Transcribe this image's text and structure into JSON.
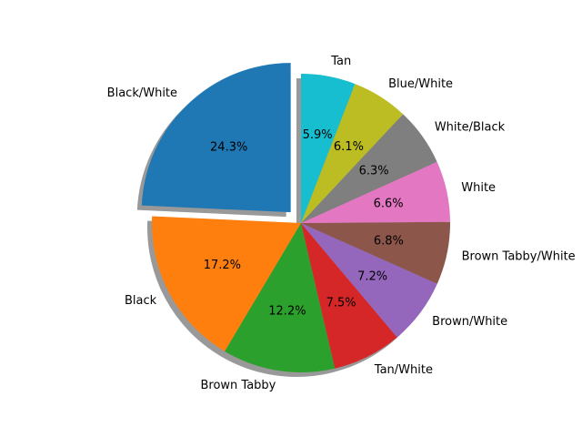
{
  "chart_data": {
    "type": "pie",
    "title": "",
    "categories": [
      "Black/White",
      "Black",
      "Brown Tabby",
      "Tan/White",
      "Brown/White",
      "Brown Tabby/White",
      "White",
      "White/Black",
      "Blue/White",
      "Tan"
    ],
    "values": [
      24.3,
      17.2,
      12.2,
      7.5,
      7.2,
      6.8,
      6.6,
      6.3,
      6.1,
      5.9
    ],
    "percent_labels": [
      "24.3%",
      "17.2%",
      "12.2%",
      "7.5%",
      "7.2%",
      "6.8%",
      "6.6%",
      "6.3%",
      "6.1%",
      "5.9%"
    ],
    "colors": [
      "#1f77b4",
      "#ff7f0e",
      "#2ca02c",
      "#d62728",
      "#9467bd",
      "#8c564b",
      "#e377c2",
      "#7f7f7f",
      "#bcbd22",
      "#17becf"
    ],
    "explode": [
      0.1,
      0,
      0,
      0,
      0,
      0,
      0,
      0,
      0,
      0
    ],
    "start_angle_deg": 90,
    "shadow": true
  }
}
